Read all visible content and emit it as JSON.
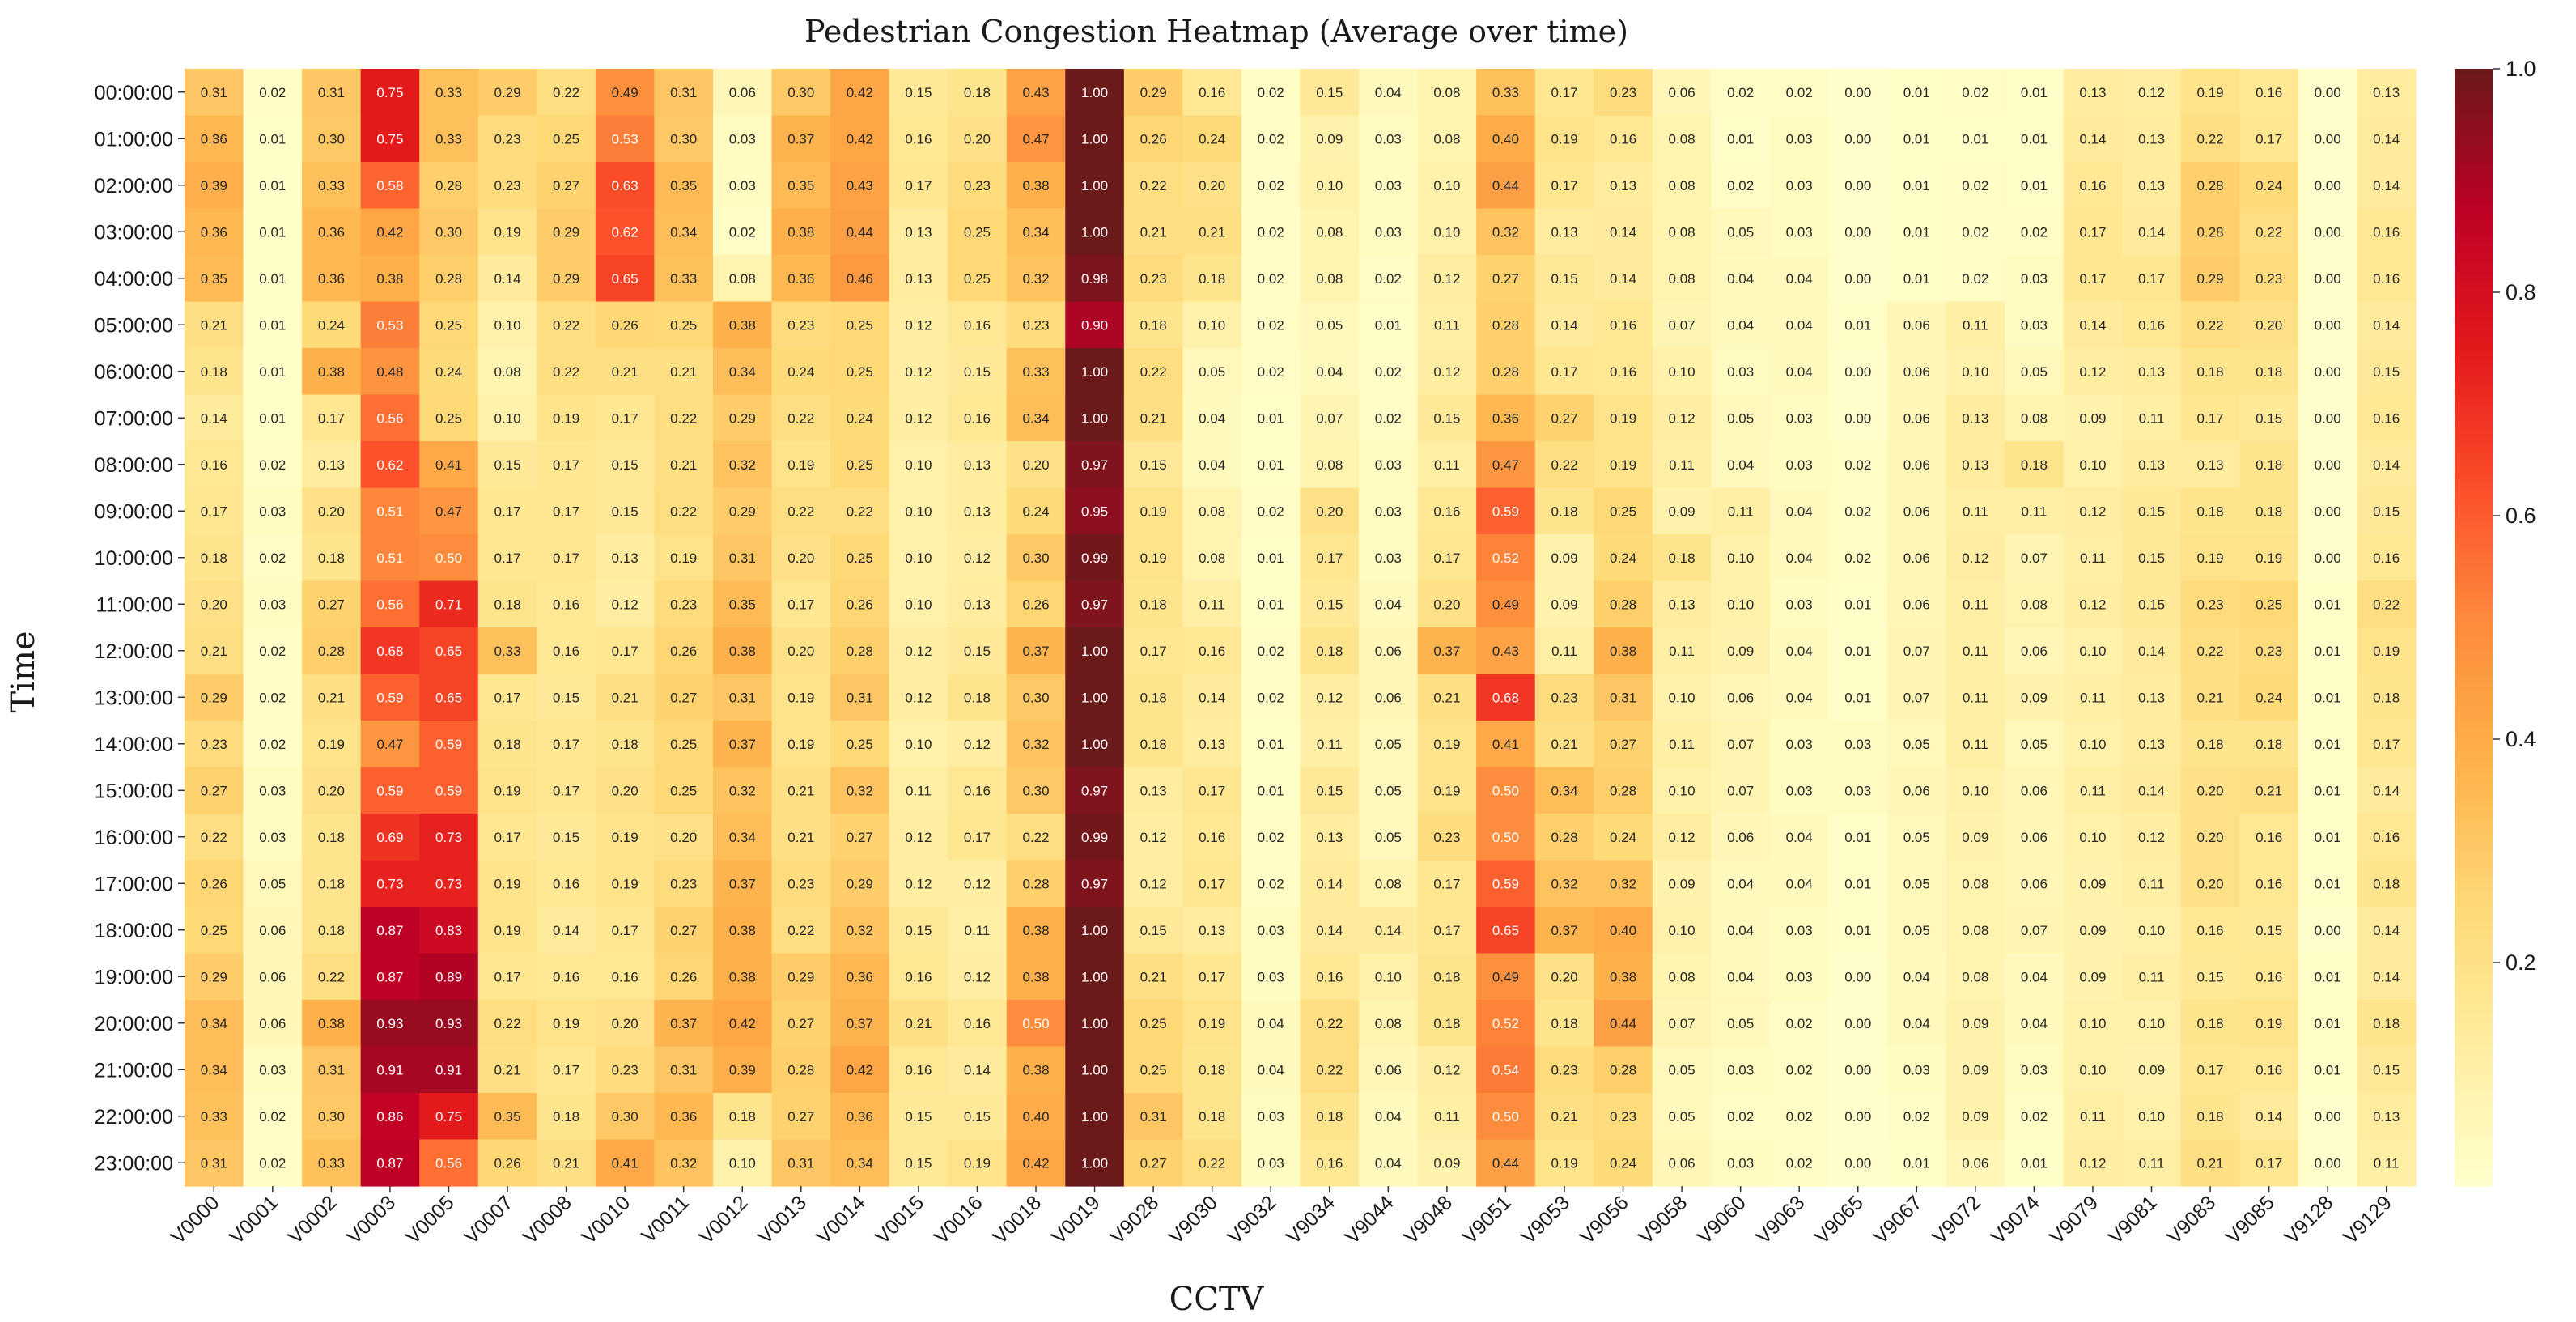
{
  "chart_data": {
    "type": "heatmap",
    "title": "Pedestrian Congestion Heatmap (Average over time)",
    "xlabel": "CCTV",
    "ylabel": "Time",
    "x": [
      "V0000",
      "V0001",
      "V0002",
      "V0003",
      "V0005",
      "V0007",
      "V0008",
      "V0010",
      "V0011",
      "V0012",
      "V0013",
      "V0014",
      "V0015",
      "V0016",
      "V0018",
      "V0019",
      "V9028",
      "V9030",
      "V9032",
      "V9034",
      "V9044",
      "V9048",
      "V9051",
      "V9053",
      "V9056",
      "V9058",
      "V9060",
      "V9063",
      "V9065",
      "V9067",
      "V9072",
      "V9074",
      "V9079",
      "V9081",
      "V9083",
      "V9085",
      "V9128",
      "V9129"
    ],
    "y": [
      "00:00:00",
      "01:00:00",
      "02:00:00",
      "03:00:00",
      "04:00:00",
      "05:00:00",
      "06:00:00",
      "07:00:00",
      "08:00:00",
      "09:00:00",
      "10:00:00",
      "11:00:00",
      "12:00:00",
      "13:00:00",
      "14:00:00",
      "15:00:00",
      "16:00:00",
      "17:00:00",
      "18:00:00",
      "19:00:00",
      "20:00:00",
      "21:00:00",
      "22:00:00",
      "23:00:00"
    ],
    "values": [
      [
        0.31,
        0.02,
        0.31,
        0.75,
        0.33,
        0.29,
        0.22,
        0.49,
        0.31,
        0.06,
        0.3,
        0.42,
        0.15,
        0.18,
        0.43,
        1.0,
        0.29,
        0.16,
        0.02,
        0.15,
        0.04,
        0.08,
        0.33,
        0.17,
        0.23,
        0.06,
        0.02,
        0.02,
        0.0,
        0.01,
        0.02,
        0.01,
        0.13,
        0.12,
        0.19,
        0.16,
        0.0,
        0.13
      ],
      [
        0.36,
        0.01,
        0.3,
        0.75,
        0.33,
        0.23,
        0.25,
        0.53,
        0.3,
        0.03,
        0.37,
        0.42,
        0.16,
        0.2,
        0.47,
        1.0,
        0.26,
        0.24,
        0.02,
        0.09,
        0.03,
        0.08,
        0.4,
        0.19,
        0.16,
        0.08,
        0.01,
        0.03,
        0.0,
        0.01,
        0.01,
        0.01,
        0.14,
        0.13,
        0.22,
        0.17,
        0.0,
        0.14
      ],
      [
        0.39,
        0.01,
        0.33,
        0.58,
        0.28,
        0.23,
        0.27,
        0.63,
        0.35,
        0.03,
        0.35,
        0.43,
        0.17,
        0.23,
        0.38,
        1.0,
        0.22,
        0.2,
        0.02,
        0.1,
        0.03,
        0.1,
        0.44,
        0.17,
        0.13,
        0.08,
        0.02,
        0.03,
        0.0,
        0.01,
        0.02,
        0.01,
        0.16,
        0.13,
        0.28,
        0.24,
        0.0,
        0.14
      ],
      [
        0.36,
        0.01,
        0.36,
        0.42,
        0.3,
        0.19,
        0.29,
        0.62,
        0.34,
        0.02,
        0.38,
        0.44,
        0.13,
        0.25,
        0.34,
        1.0,
        0.21,
        0.21,
        0.02,
        0.08,
        0.03,
        0.1,
        0.32,
        0.13,
        0.14,
        0.08,
        0.05,
        0.03,
        0.0,
        0.01,
        0.02,
        0.02,
        0.17,
        0.14,
        0.28,
        0.22,
        0.0,
        0.16
      ],
      [
        0.35,
        0.01,
        0.36,
        0.38,
        0.28,
        0.14,
        0.29,
        0.65,
        0.33,
        0.08,
        0.36,
        0.46,
        0.13,
        0.25,
        0.32,
        0.98,
        0.23,
        0.18,
        0.02,
        0.08,
        0.02,
        0.12,
        0.27,
        0.15,
        0.14,
        0.08,
        0.04,
        0.04,
        0.0,
        0.01,
        0.02,
        0.03,
        0.17,
        0.17,
        0.29,
        0.23,
        0.0,
        0.16
      ],
      [
        0.21,
        0.01,
        0.24,
        0.53,
        0.25,
        0.1,
        0.22,
        0.26,
        0.25,
        0.38,
        0.23,
        0.25,
        0.12,
        0.16,
        0.23,
        0.9,
        0.18,
        0.1,
        0.02,
        0.05,
        0.01,
        0.11,
        0.28,
        0.14,
        0.16,
        0.07,
        0.04,
        0.04,
        0.01,
        0.06,
        0.11,
        0.03,
        0.14,
        0.16,
        0.22,
        0.2,
        0.0,
        0.14
      ],
      [
        0.18,
        0.01,
        0.38,
        0.48,
        0.24,
        0.08,
        0.22,
        0.21,
        0.21,
        0.34,
        0.24,
        0.25,
        0.12,
        0.15,
        0.33,
        1.0,
        0.22,
        0.05,
        0.02,
        0.04,
        0.02,
        0.12,
        0.28,
        0.17,
        0.16,
        0.1,
        0.03,
        0.04,
        0.0,
        0.06,
        0.1,
        0.05,
        0.12,
        0.13,
        0.18,
        0.18,
        0.0,
        0.15
      ],
      [
        0.14,
        0.01,
        0.17,
        0.56,
        0.25,
        0.1,
        0.19,
        0.17,
        0.22,
        0.29,
        0.22,
        0.24,
        0.12,
        0.16,
        0.34,
        1.0,
        0.21,
        0.04,
        0.01,
        0.07,
        0.02,
        0.15,
        0.36,
        0.27,
        0.19,
        0.12,
        0.05,
        0.03,
        0.0,
        0.06,
        0.13,
        0.08,
        0.09,
        0.11,
        0.17,
        0.15,
        0.0,
        0.16
      ],
      [
        0.16,
        0.02,
        0.13,
        0.62,
        0.41,
        0.15,
        0.17,
        0.15,
        0.21,
        0.32,
        0.19,
        0.25,
        0.1,
        0.13,
        0.2,
        0.97,
        0.15,
        0.04,
        0.01,
        0.08,
        0.03,
        0.11,
        0.47,
        0.22,
        0.19,
        0.11,
        0.04,
        0.03,
        0.02,
        0.06,
        0.13,
        0.18,
        0.1,
        0.13,
        0.13,
        0.18,
        0.0,
        0.14
      ],
      [
        0.17,
        0.03,
        0.2,
        0.51,
        0.47,
        0.17,
        0.17,
        0.15,
        0.22,
        0.29,
        0.22,
        0.22,
        0.1,
        0.13,
        0.24,
        0.95,
        0.19,
        0.08,
        0.02,
        0.2,
        0.03,
        0.16,
        0.59,
        0.18,
        0.25,
        0.09,
        0.11,
        0.04,
        0.02,
        0.06,
        0.11,
        0.11,
        0.12,
        0.15,
        0.18,
        0.18,
        0.0,
        0.15
      ],
      [
        0.18,
        0.02,
        0.18,
        0.51,
        0.5,
        0.17,
        0.17,
        0.13,
        0.19,
        0.31,
        0.2,
        0.25,
        0.1,
        0.12,
        0.3,
        0.99,
        0.19,
        0.08,
        0.01,
        0.17,
        0.03,
        0.17,
        0.52,
        0.09,
        0.24,
        0.18,
        0.1,
        0.04,
        0.02,
        0.06,
        0.12,
        0.07,
        0.11,
        0.15,
        0.19,
        0.19,
        0.0,
        0.16
      ],
      [
        0.2,
        0.03,
        0.27,
        0.56,
        0.71,
        0.18,
        0.16,
        0.12,
        0.23,
        0.35,
        0.17,
        0.26,
        0.1,
        0.13,
        0.26,
        0.97,
        0.18,
        0.11,
        0.01,
        0.15,
        0.04,
        0.2,
        0.49,
        0.09,
        0.28,
        0.13,
        0.1,
        0.03,
        0.01,
        0.06,
        0.11,
        0.08,
        0.12,
        0.15,
        0.23,
        0.25,
        0.01,
        0.22
      ],
      [
        0.21,
        0.02,
        0.28,
        0.68,
        0.65,
        0.33,
        0.16,
        0.17,
        0.26,
        0.38,
        0.2,
        0.28,
        0.12,
        0.15,
        0.37,
        1.0,
        0.17,
        0.16,
        0.02,
        0.18,
        0.06,
        0.37,
        0.43,
        0.11,
        0.38,
        0.11,
        0.09,
        0.04,
        0.01,
        0.07,
        0.11,
        0.06,
        0.1,
        0.14,
        0.22,
        0.23,
        0.01,
        0.19
      ],
      [
        0.29,
        0.02,
        0.21,
        0.59,
        0.65,
        0.17,
        0.15,
        0.21,
        0.27,
        0.31,
        0.19,
        0.31,
        0.12,
        0.18,
        0.3,
        1.0,
        0.18,
        0.14,
        0.02,
        0.12,
        0.06,
        0.21,
        0.68,
        0.23,
        0.31,
        0.1,
        0.06,
        0.04,
        0.01,
        0.07,
        0.11,
        0.09,
        0.11,
        0.13,
        0.21,
        0.24,
        0.01,
        0.18
      ],
      [
        0.23,
        0.02,
        0.19,
        0.47,
        0.59,
        0.18,
        0.17,
        0.18,
        0.25,
        0.37,
        0.19,
        0.25,
        0.1,
        0.12,
        0.32,
        1.0,
        0.18,
        0.13,
        0.01,
        0.11,
        0.05,
        0.19,
        0.41,
        0.21,
        0.27,
        0.11,
        0.07,
        0.03,
        0.03,
        0.05,
        0.11,
        0.05,
        0.1,
        0.13,
        0.18,
        0.18,
        0.01,
        0.17
      ],
      [
        0.27,
        0.03,
        0.2,
        0.59,
        0.59,
        0.19,
        0.17,
        0.2,
        0.25,
        0.32,
        0.21,
        0.32,
        0.11,
        0.16,
        0.3,
        0.97,
        0.13,
        0.17,
        0.01,
        0.15,
        0.05,
        0.19,
        0.5,
        0.34,
        0.28,
        0.1,
        0.07,
        0.03,
        0.03,
        0.06,
        0.1,
        0.06,
        0.11,
        0.14,
        0.2,
        0.21,
        0.01,
        0.14
      ],
      [
        0.22,
        0.03,
        0.18,
        0.69,
        0.73,
        0.17,
        0.15,
        0.19,
        0.2,
        0.34,
        0.21,
        0.27,
        0.12,
        0.17,
        0.22,
        0.99,
        0.12,
        0.16,
        0.02,
        0.13,
        0.05,
        0.23,
        0.5,
        0.28,
        0.24,
        0.12,
        0.06,
        0.04,
        0.01,
        0.05,
        0.09,
        0.06,
        0.1,
        0.12,
        0.2,
        0.16,
        0.01,
        0.16
      ],
      [
        0.26,
        0.05,
        0.18,
        0.73,
        0.73,
        0.19,
        0.16,
        0.19,
        0.23,
        0.37,
        0.23,
        0.29,
        0.12,
        0.12,
        0.28,
        0.97,
        0.12,
        0.17,
        0.02,
        0.14,
        0.08,
        0.17,
        0.59,
        0.32,
        0.32,
        0.09,
        0.04,
        0.04,
        0.01,
        0.05,
        0.08,
        0.06,
        0.09,
        0.11,
        0.2,
        0.16,
        0.01,
        0.18
      ],
      [
        0.25,
        0.06,
        0.18,
        0.87,
        0.83,
        0.19,
        0.14,
        0.17,
        0.27,
        0.38,
        0.22,
        0.32,
        0.15,
        0.11,
        0.38,
        1.0,
        0.15,
        0.13,
        0.03,
        0.14,
        0.14,
        0.17,
        0.65,
        0.37,
        0.4,
        0.1,
        0.04,
        0.03,
        0.01,
        0.05,
        0.08,
        0.07,
        0.09,
        0.1,
        0.16,
        0.15,
        0.0,
        0.14
      ],
      [
        0.29,
        0.06,
        0.22,
        0.87,
        0.89,
        0.17,
        0.16,
        0.16,
        0.26,
        0.38,
        0.29,
        0.36,
        0.16,
        0.12,
        0.38,
        1.0,
        0.21,
        0.17,
        0.03,
        0.16,
        0.1,
        0.18,
        0.49,
        0.2,
        0.38,
        0.08,
        0.04,
        0.03,
        0.0,
        0.04,
        0.08,
        0.04,
        0.09,
        0.11,
        0.15,
        0.16,
        0.01,
        0.14
      ],
      [
        0.34,
        0.06,
        0.38,
        0.93,
        0.93,
        0.22,
        0.19,
        0.2,
        0.37,
        0.42,
        0.27,
        0.37,
        0.21,
        0.16,
        0.5,
        1.0,
        0.25,
        0.19,
        0.04,
        0.22,
        0.08,
        0.18,
        0.52,
        0.18,
        0.44,
        0.07,
        0.05,
        0.02,
        0.0,
        0.04,
        0.09,
        0.04,
        0.1,
        0.1,
        0.18,
        0.19,
        0.01,
        0.18
      ],
      [
        0.34,
        0.03,
        0.31,
        0.91,
        0.91,
        0.21,
        0.17,
        0.23,
        0.31,
        0.39,
        0.28,
        0.42,
        0.16,
        0.14,
        0.38,
        1.0,
        0.25,
        0.18,
        0.04,
        0.22,
        0.06,
        0.12,
        0.54,
        0.23,
        0.28,
        0.05,
        0.03,
        0.02,
        0.0,
        0.03,
        0.09,
        0.03,
        0.1,
        0.09,
        0.17,
        0.16,
        0.01,
        0.15
      ],
      [
        0.33,
        0.02,
        0.3,
        0.86,
        0.75,
        0.35,
        0.18,
        0.3,
        0.36,
        0.18,
        0.27,
        0.36,
        0.15,
        0.15,
        0.4,
        1.0,
        0.31,
        0.18,
        0.03,
        0.18,
        0.04,
        0.11,
        0.5,
        0.21,
        0.23,
        0.05,
        0.02,
        0.02,
        0.0,
        0.02,
        0.09,
        0.02,
        0.11,
        0.1,
        0.18,
        0.14,
        0.0,
        0.13
      ],
      [
        0.31,
        0.02,
        0.33,
        0.87,
        0.56,
        0.26,
        0.21,
        0.41,
        0.32,
        0.1,
        0.31,
        0.34,
        0.15,
        0.19,
        0.42,
        1.0,
        0.27,
        0.22,
        0.03,
        0.16,
        0.04,
        0.09,
        0.44,
        0.19,
        0.24,
        0.06,
        0.03,
        0.02,
        0.0,
        0.01,
        0.06,
        0.01,
        0.12,
        0.11,
        0.21,
        0.17,
        0.0,
        0.11
      ]
    ],
    "value_format": "2 decimals",
    "colorbar": {
      "min": 0.0,
      "max": 1.0,
      "ticks": [
        "0.2",
        "0.4",
        "0.6",
        "0.8",
        "1.0"
      ],
      "tick_values": [
        0.2,
        0.4,
        0.6,
        0.8,
        1.0
      ]
    },
    "colormap": [
      "#ffffcc",
      "#ffeda0",
      "#fed976",
      "#feb24c",
      "#fd8d3c",
      "#fc4e2a",
      "#e31a1c",
      "#bd0026",
      "#6b1a1a"
    ]
  }
}
